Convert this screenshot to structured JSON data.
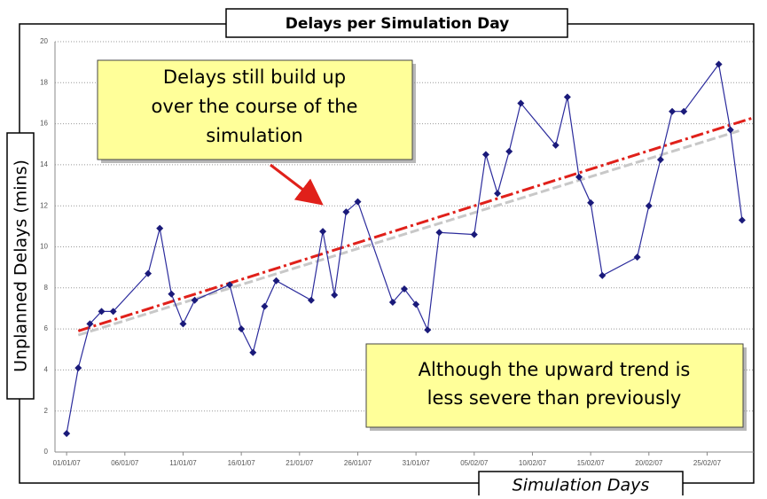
{
  "chart_data": {
    "type": "line",
    "title": "Delays per Simulation Day",
    "y_label": "Unplanned Delays (mins)",
    "x_label": "Simulation Days",
    "x": [
      "01/01/07",
      "02/01/07",
      "03/01/07",
      "04/01/07",
      "05/01/07",
      "08/01/07",
      "09/01/07",
      "10/01/07",
      "11/01/07",
      "12/01/07",
      "15/01/07",
      "16/01/07",
      "17/01/07",
      "18/01/07",
      "19/01/07",
      "22/01/07",
      "23/01/07",
      "24/01/07",
      "25/01/07",
      "26/01/07",
      "29/01/07",
      "30/01/07",
      "31/01/07",
      "01/02/07",
      "02/02/07",
      "05/02/07",
      "06/02/07",
      "07/02/07",
      "08/02/07",
      "09/02/07",
      "12/02/07",
      "13/02/07",
      "14/02/07",
      "15/02/07",
      "16/02/07",
      "19/02/07",
      "20/02/07",
      "21/02/07",
      "22/02/07",
      "23/02/07",
      "26/02/07",
      "27/02/07",
      "28/02/07"
    ],
    "series": [
      {
        "name": "Delays",
        "color": "#2b2b9c",
        "values": [
          0.9,
          4.1,
          6.25,
          6.85,
          6.85,
          8.7,
          10.9,
          7.7,
          6.25,
          7.4,
          8.15,
          6.0,
          4.85,
          7.1,
          8.35,
          7.4,
          10.75,
          7.65,
          11.7,
          12.2,
          7.3,
          7.95,
          7.2,
          5.95,
          10.7,
          10.6,
          14.5,
          12.6,
          14.65,
          17.0,
          14.95,
          17.3,
          13.4,
          12.15,
          8.6,
          9.5,
          12.0,
          14.25,
          16.6,
          16.6,
          18.9,
          15.7,
          11.3
        ]
      }
    ],
    "trendlines": [
      {
        "color": "#c8c8c8",
        "x": [
          "02/01/07",
          "28/02/07"
        ],
        "values": [
          5.7,
          15.7
        ]
      },
      {
        "color": "#e0201a",
        "x": [
          "02/01/07",
          "01/03/07"
        ],
        "values": [
          5.9,
          16.3
        ]
      }
    ],
    "xlim": [
      "31/12/06",
      "01/03/07"
    ],
    "xticks": [
      "01/01/07",
      "06/01/07",
      "11/01/07",
      "16/01/07",
      "21/01/07",
      "26/01/07",
      "31/01/07",
      "05/02/07",
      "10/02/07",
      "15/02/07",
      "20/02/07",
      "25/02/07"
    ],
    "ylim": [
      0,
      20
    ],
    "yticks": [
      0,
      2,
      4,
      6,
      8,
      10,
      12,
      14,
      16,
      18,
      20
    ],
    "grid": true,
    "annotations": [
      {
        "lines": [
          "Delays still build up",
          "over the course of the",
          "simulation"
        ]
      },
      {
        "lines": [
          "Although the upward trend is",
          "less severe than previously"
        ]
      }
    ]
  }
}
